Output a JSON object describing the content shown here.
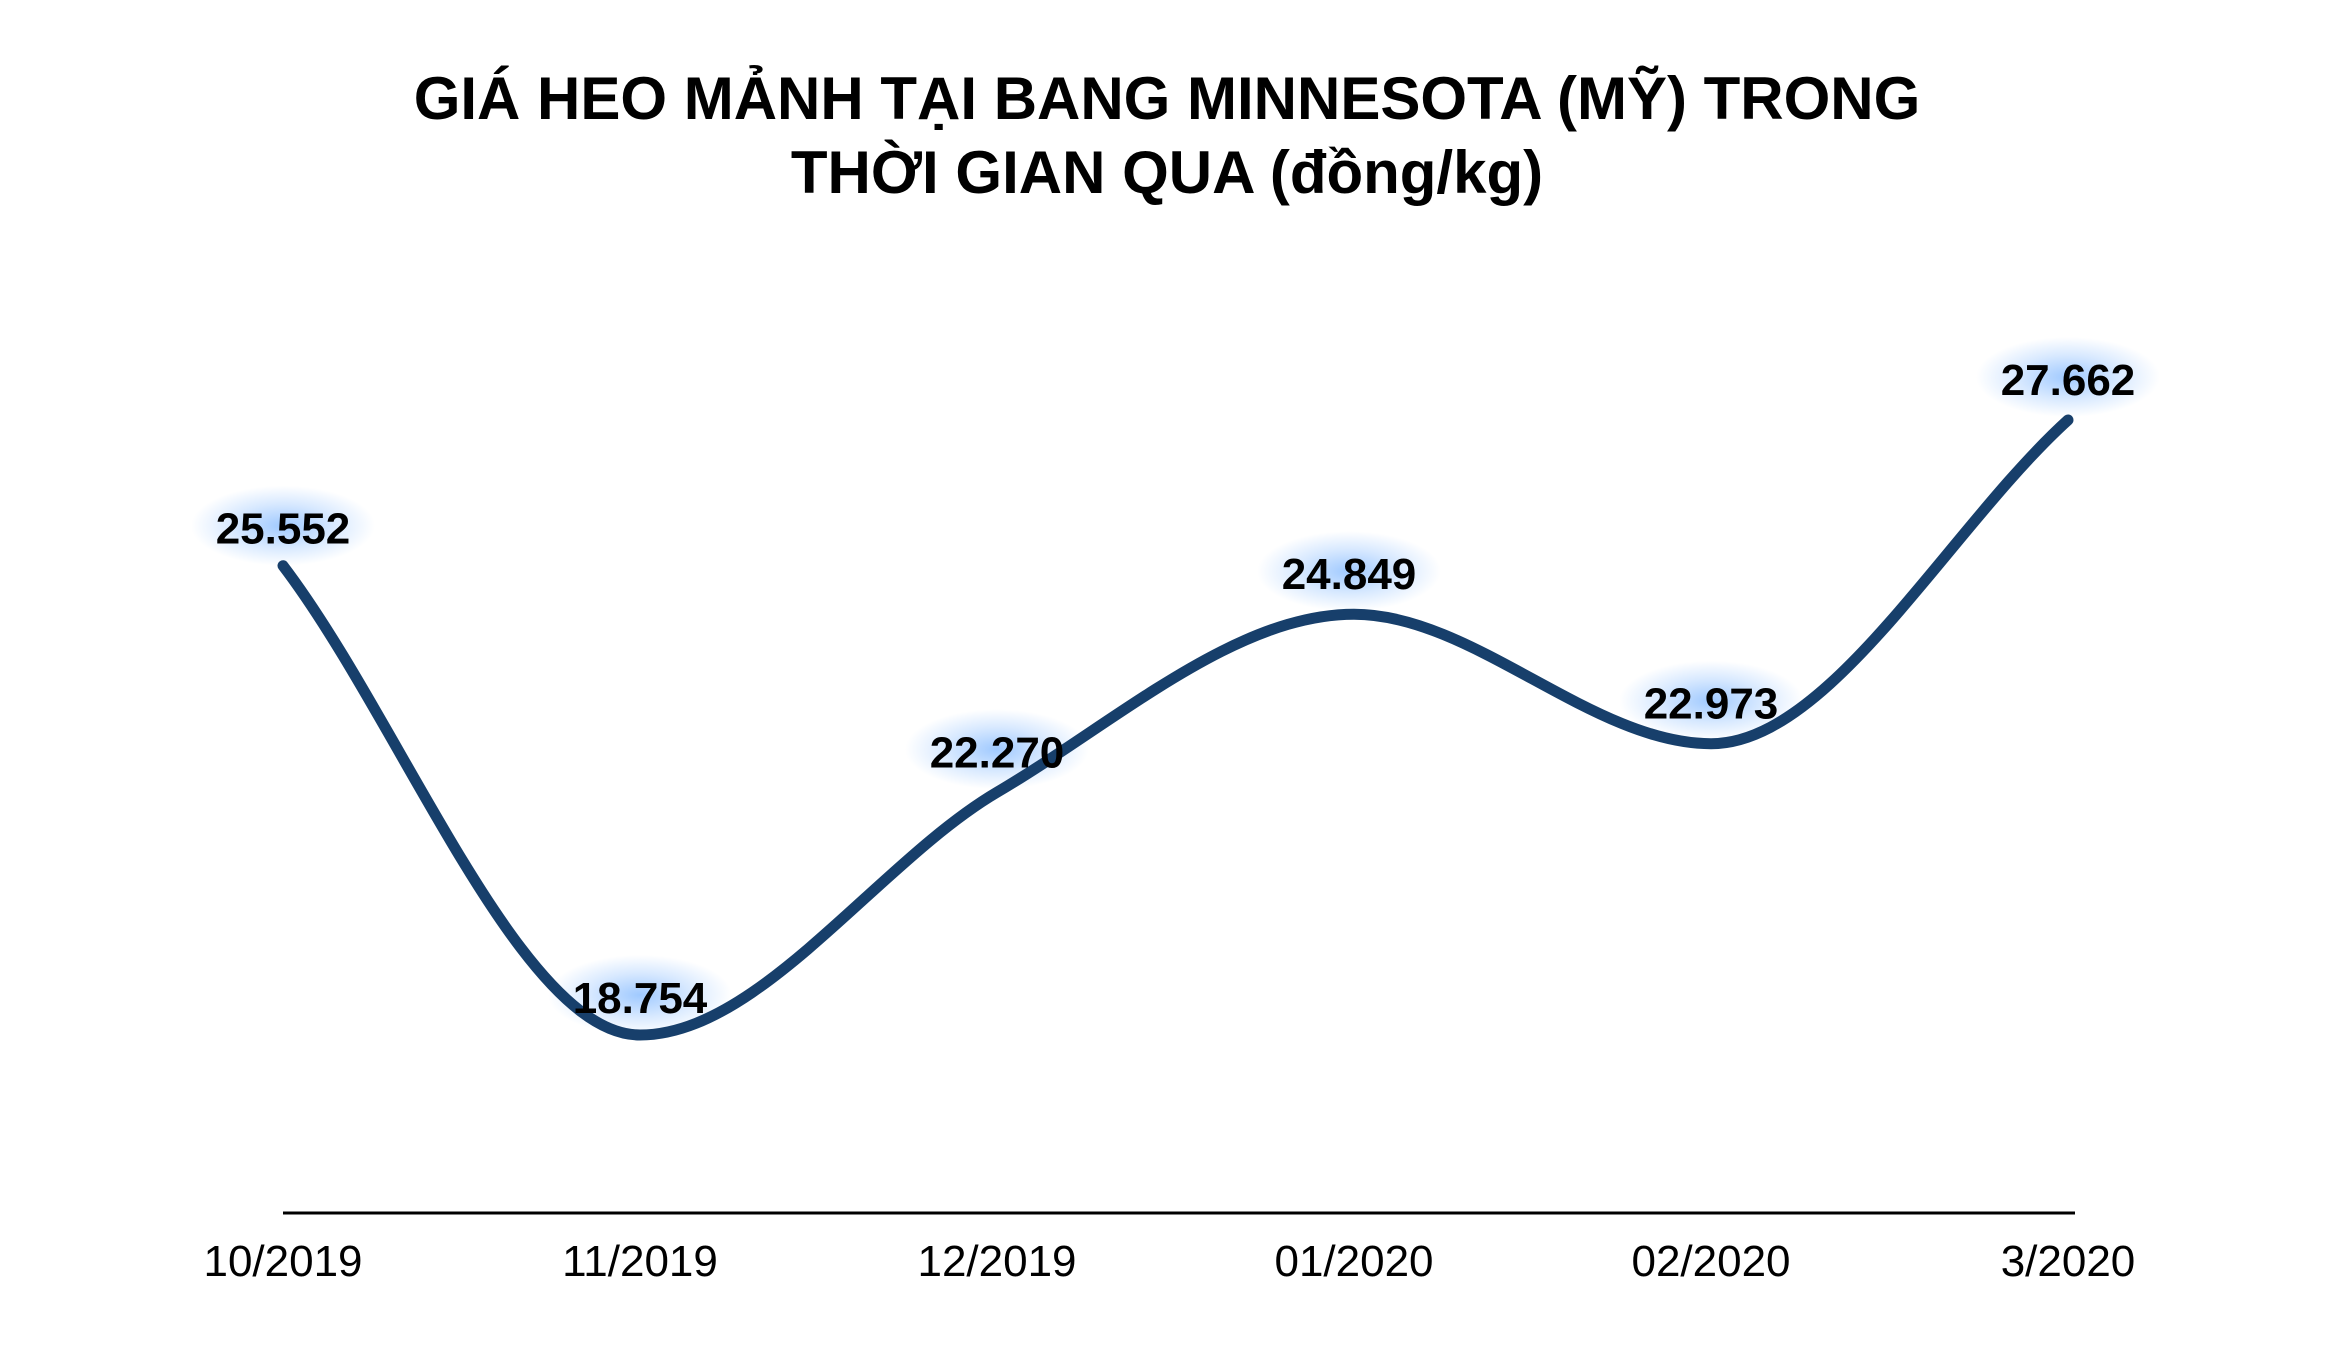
{
  "chart_data": {
    "type": "line",
    "title_lines": [
      "GIÁ HEO MẢNH TẠI BANG MINNESOTA (MỸ) TRONG",
      "THỜI GIAN QUA (đồng/kg)"
    ],
    "categories": [
      "10/2019",
      "11/2019",
      "12/2019",
      "01/2020",
      "02/2020",
      "3/2020"
    ],
    "values": [
      25552,
      18754,
      22270,
      24849,
      22973,
      27662
    ],
    "value_labels": [
      "25.552",
      "18.754",
      "22.270",
      "24.849",
      "22.973",
      "27.662"
    ],
    "xlabel": "",
    "ylabel": "",
    "grid": false,
    "smooth": true,
    "legend": "none",
    "line_color": "#173f6b",
    "label_glow_color": "#8fc0ff"
  }
}
